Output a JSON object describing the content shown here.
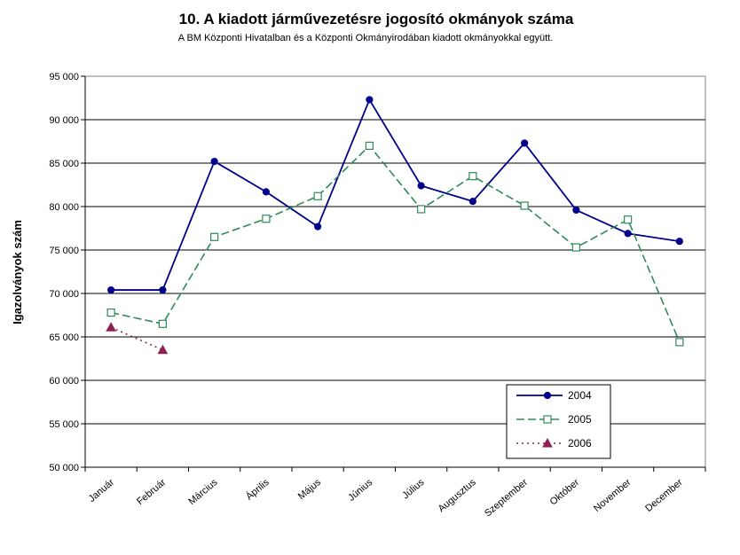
{
  "chart_data": {
    "type": "line",
    "title": "10. A  kiadott járművezetésre  jogosító okmányok száma",
    "subtitle": "A BM Központi Hivatalban és a Központi Okmányirodában kiadott okmányokkal együtt.",
    "xlabel": "",
    "ylabel": "Igazolványok szám",
    "ylim": [
      50000,
      95000
    ],
    "ytick_step": 5000,
    "ytick_labels": [
      "50 000",
      "55 000",
      "60 000",
      "65 000",
      "70 000",
      "75 000",
      "80 000",
      "85 000",
      "90 000",
      "95 000"
    ],
    "categories": [
      "Január",
      "Február",
      "Március",
      "Április",
      "Május",
      "Június",
      "Július",
      "Augusztus",
      "Szeptember",
      "Október",
      "November",
      "December"
    ],
    "grid": true,
    "legend_position": "bottom-right",
    "series": [
      {
        "name": "2004",
        "color": "#00008B",
        "dash": "solid",
        "marker": "circle",
        "values": [
          70400,
          70400,
          85200,
          81700,
          77700,
          92300,
          82400,
          80600,
          87300,
          79600,
          76900,
          76000
        ]
      },
      {
        "name": "2005",
        "color": "#2E8B57",
        "dash": "dashed",
        "marker": "square",
        "values": [
          67800,
          66500,
          76500,
          78600,
          81200,
          87000,
          79700,
          83500,
          80100,
          75300,
          78500,
          64400
        ]
      },
      {
        "name": "2006",
        "color": "#8B2252",
        "dash": "dotted",
        "marker": "triangle",
        "values": [
          66100,
          63500,
          null,
          null,
          null,
          null,
          null,
          null,
          null,
          null,
          null,
          null
        ]
      }
    ]
  }
}
